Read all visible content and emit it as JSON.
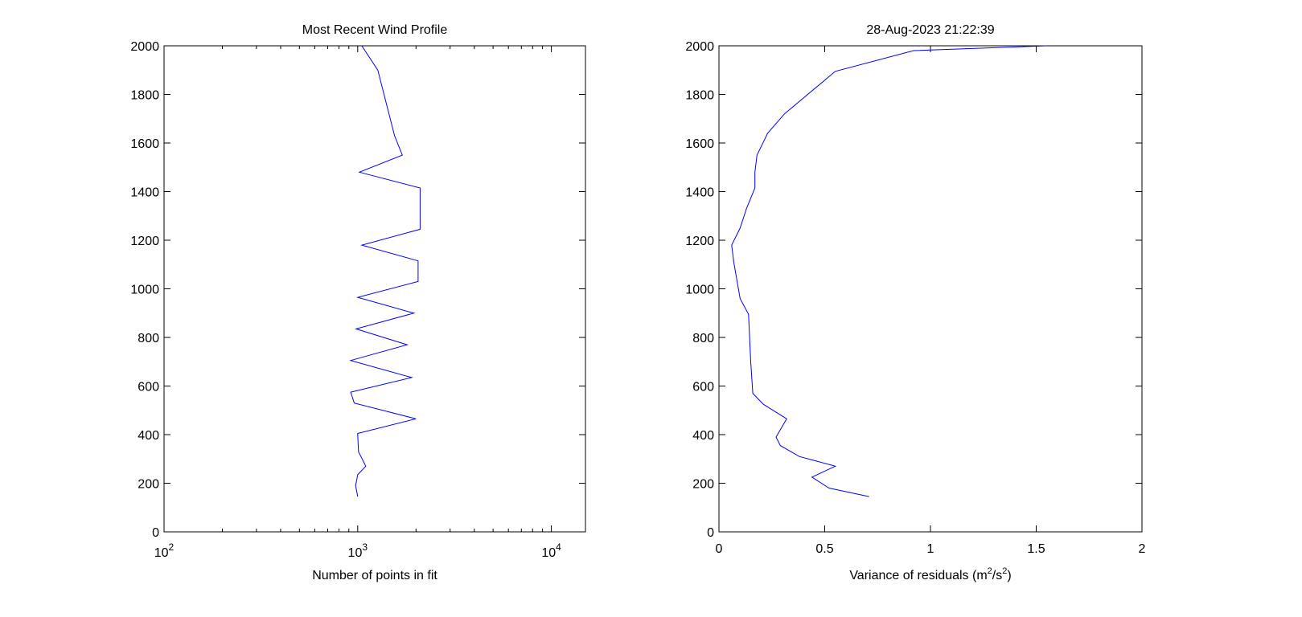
{
  "chart_data": [
    {
      "type": "line",
      "title": "Most Recent Wind Profile",
      "xlabel": "Number of points in fit",
      "ylabel": "",
      "xscale": "log",
      "xlim": [
        100,
        15000
      ],
      "ylim": [
        0,
        2000
      ],
      "xticks": [
        100,
        1000,
        10000
      ],
      "xtick_labels": [
        {
          "base": "10",
          "exp": "2"
        },
        {
          "base": "10",
          "exp": "3"
        },
        {
          "base": "10",
          "exp": "4"
        }
      ],
      "yticks": [
        0,
        200,
        400,
        600,
        800,
        1000,
        1200,
        1400,
        1600,
        1800,
        2000
      ],
      "grid": false,
      "series": [
        {
          "color": "#0000ff",
          "x": [
            1000,
            975,
            1000,
            1100,
            1010,
            1000,
            1000,
            2000,
            960,
            920,
            1900,
            920,
            1800,
            980,
            1950,
            1000,
            2050,
            2050,
            1050,
            2100,
            2100,
            1020,
            1700,
            1550,
            1270,
            1050
          ],
          "y": [
            145,
            190,
            235,
            270,
            330,
            400,
            405,
            465,
            530,
            575,
            635,
            705,
            770,
            835,
            900,
            965,
            1030,
            1115,
            1180,
            1245,
            1415,
            1480,
            1550,
            1630,
            1900,
            2000
          ]
        }
      ]
    },
    {
      "type": "line",
      "title": "28-Aug-2023 21:22:39",
      "xlabel": "Variance of residuals (m",
      "xlabel_sup1": "2",
      "xlabel_mid": "/s",
      "xlabel_sup2": "2",
      "xlabel_end": ")",
      "ylabel": "",
      "xlim": [
        0,
        2
      ],
      "ylim": [
        0,
        2000
      ],
      "xticks": [
        0,
        0.5,
        1,
        1.5,
        2
      ],
      "xtick_labels": [
        "0",
        "0.5",
        "1",
        "1.5",
        "2"
      ],
      "yticks": [
        0,
        200,
        400,
        600,
        800,
        1000,
        1200,
        1400,
        1600,
        1800,
        2000
      ],
      "grid": false,
      "series": [
        {
          "color": "#0000ff",
          "x": [
            0.71,
            0.52,
            0.44,
            0.55,
            0.38,
            0.29,
            0.27,
            0.32,
            0.21,
            0.16,
            0.15,
            0.14,
            0.1,
            0.07,
            0.06,
            0.1,
            0.13,
            0.17,
            0.17,
            0.18,
            0.23,
            0.31,
            0.55,
            0.92,
            1.55
          ],
          "y": [
            145,
            180,
            225,
            270,
            310,
            355,
            390,
            465,
            525,
            570,
            700,
            895,
            960,
            1110,
            1180,
            1250,
            1330,
            1415,
            1480,
            1550,
            1640,
            1720,
            1895,
            1980,
            2000
          ]
        }
      ]
    }
  ]
}
